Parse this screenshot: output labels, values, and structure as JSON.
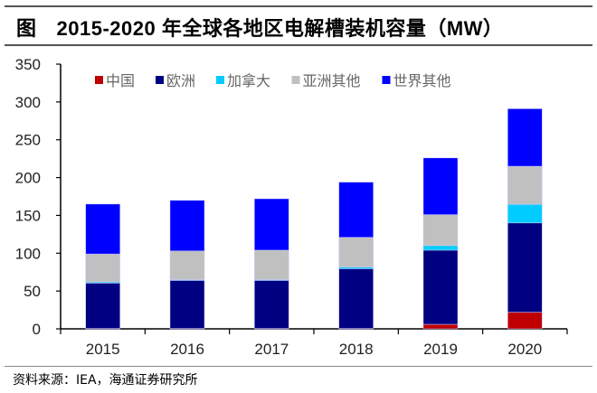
{
  "title": {
    "prefix": "图",
    "text": "2015-2020 年全球各地区电解槽装机容量（MW）"
  },
  "source": "资料来源：IEA，海通证券研究所",
  "chart_data": {
    "type": "bar",
    "stacked": true,
    "title": "2015-2020 年全球各地区电解槽装机容量（MW）",
    "xlabel": "",
    "ylabel": "",
    "ylim": [
      0,
      350
    ],
    "yticks": [
      0,
      50,
      100,
      150,
      200,
      250,
      300,
      350
    ],
    "grid": false,
    "legend_position": "top",
    "categories": [
      "2015",
      "2016",
      "2017",
      "2018",
      "2019",
      "2020"
    ],
    "series": [
      {
        "name": "中国",
        "color": "#C00000",
        "values": [
          0.5,
          0.5,
          0.5,
          0.5,
          6,
          22
        ]
      },
      {
        "name": "欧洲",
        "color": "#000080",
        "values": [
          60,
          63.5,
          63.5,
          79,
          98,
          118
        ]
      },
      {
        "name": "加拿大",
        "color": "#00CCFF",
        "values": [
          1.5,
          1,
          1,
          2,
          6,
          24.5
        ]
      },
      {
        "name": "亚洲其他",
        "color": "#C0C0C0",
        "values": [
          37,
          38,
          39,
          39.5,
          41,
          50.5
        ]
      },
      {
        "name": "世界其他",
        "color": "#0000FF",
        "values": [
          66,
          67,
          68,
          73,
          75,
          76
        ]
      }
    ]
  }
}
